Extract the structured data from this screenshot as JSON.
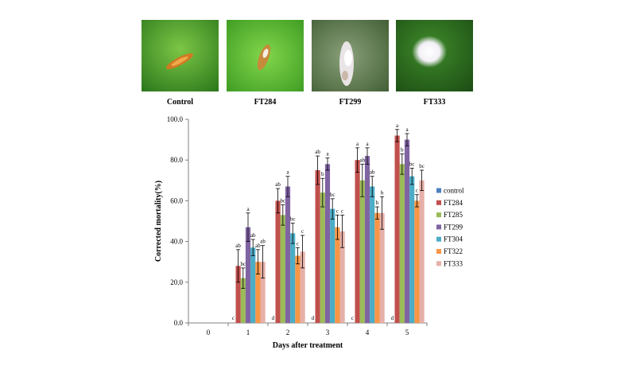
{
  "panels": [
    {
      "label": "Control"
    },
    {
      "label": "FT284"
    },
    {
      "label": "FT299"
    },
    {
      "label": "FT333"
    }
  ],
  "colors": {
    "control": "#4f81bd",
    "FT284": "#c0504d",
    "FT285": "#9bbb59",
    "FT299": "#8064a2",
    "FT304": "#4bacc6",
    "FT322": "#f79646",
    "FT333": "#e6b0a8",
    "leaf": "#4c9a28"
  },
  "chart_data": {
    "type": "bar",
    "xlabel": "Days after treatment",
    "ylabel": "Corrected mortality(%)",
    "categories": [
      "0",
      "1",
      "2",
      "3",
      "4",
      "5"
    ],
    "ylim": [
      0,
      100
    ],
    "yticks": [
      "0.0",
      "20.0",
      "40.0",
      "60.0",
      "80.0",
      "100.0"
    ],
    "legend_position": "right",
    "series": [
      {
        "name": "control",
        "values": [
          0,
          0,
          0,
          0,
          0,
          0
        ],
        "errors": [
          0,
          0,
          0,
          0,
          0,
          0
        ],
        "letters": [
          "",
          "c",
          "d",
          "d",
          "c",
          "d"
        ]
      },
      {
        "name": "FT284",
        "values": [
          0,
          28,
          60,
          75,
          80,
          92
        ],
        "errors": [
          0,
          8,
          6,
          7,
          6,
          3
        ],
        "letters": [
          "",
          "ab",
          "ab",
          "ab",
          "a",
          "a"
        ]
      },
      {
        "name": "FT285",
        "values": [
          0,
          22,
          53,
          64,
          70,
          78
        ],
        "errors": [
          0,
          5,
          5,
          7,
          8,
          5
        ],
        "letters": [
          "",
          "bc",
          "bc",
          "b",
          "ab",
          "b"
        ]
      },
      {
        "name": "FT299",
        "values": [
          0,
          47,
          67,
          78,
          82,
          90
        ],
        "errors": [
          0,
          7,
          5,
          3,
          4,
          3
        ],
        "letters": [
          "",
          "a",
          "a",
          "a",
          "a",
          "a"
        ]
      },
      {
        "name": "FT304",
        "values": [
          0,
          37,
          44,
          56,
          67,
          72
        ],
        "errors": [
          0,
          4,
          5,
          5,
          5,
          4
        ],
        "letters": [
          "",
          "ab",
          "bc",
          "bc",
          "ab",
          "bc"
        ]
      },
      {
        "name": "FT322",
        "values": [
          0,
          30,
          33,
          47,
          54,
          60
        ],
        "errors": [
          0,
          6,
          4,
          6,
          3,
          3
        ],
        "letters": [
          "",
          "ab",
          "c",
          "c",
          "b",
          "c"
        ]
      },
      {
        "name": "FT333",
        "values": [
          0,
          30,
          35,
          45,
          54,
          70
        ],
        "errors": [
          0,
          8,
          8,
          8,
          8,
          5
        ],
        "letters": [
          "",
          "ab",
          "c",
          "c",
          "b",
          "bc"
        ]
      }
    ]
  }
}
